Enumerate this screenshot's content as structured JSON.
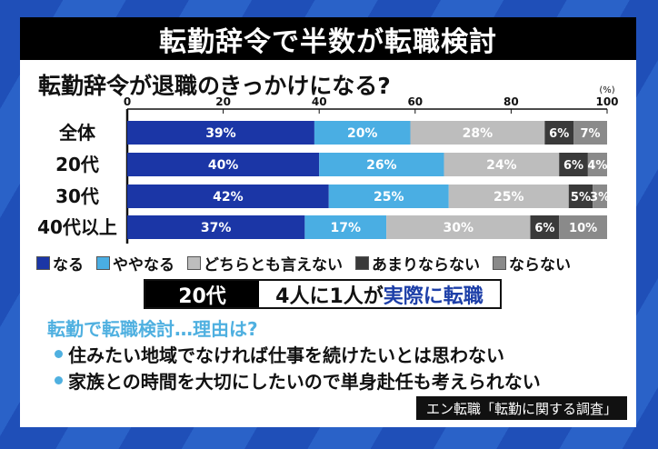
{
  "title": "転勤辞令で半数が転職検討",
  "chart_data": {
    "type": "bar",
    "orientation": "horizontal-stacked",
    "title": "転勤辞令が退職のきっかけになる?",
    "unit_label": "(%)",
    "xlim": [
      0,
      100
    ],
    "ticks": [
      "0",
      "20",
      "40",
      "60",
      "80",
      "100"
    ],
    "categories": [
      "全体",
      "20代",
      "30代",
      "40代以上"
    ],
    "series": [
      {
        "name": "なる",
        "color": "#1b36a6",
        "values": [
          39,
          40,
          42,
          37
        ]
      },
      {
        "name": "ややなる",
        "color": "#4aaee3",
        "values": [
          20,
          26,
          25,
          17
        ]
      },
      {
        "name": "どちらとも言えない",
        "color": "#bdbdbd",
        "values": [
          28,
          24,
          25,
          30
        ]
      },
      {
        "name": "あまりならない",
        "color": "#3a3a3a",
        "values": [
          6,
          6,
          5,
          6
        ]
      },
      {
        "name": "ならない",
        "color": "#8a8a8a",
        "values": [
          7,
          4,
          3,
          10
        ]
      }
    ],
    "legend": "bottom"
  },
  "highlight": {
    "tag": "20代",
    "text": "4人に1人が",
    "accent": "実際に転職"
  },
  "reasons": {
    "title": "転勤で転職検討…理由は?",
    "items": [
      "住みたい地域でなければ仕事を続けたいとは思わない",
      "家族との時間を大切にしたいので単身赴任も考えられない"
    ]
  },
  "source": "エン転職「転勤に関する調査」"
}
